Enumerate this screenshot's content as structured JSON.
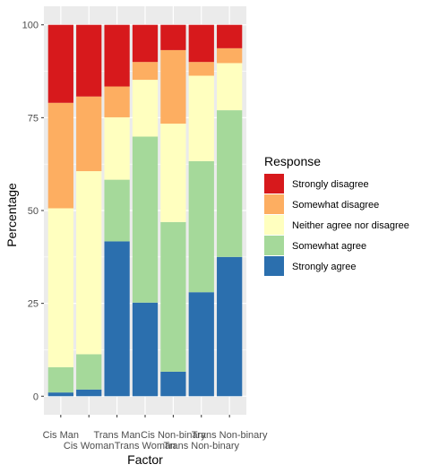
{
  "chart_data": {
    "type": "bar",
    "stacked": true,
    "xlabel": "Factor",
    "ylabel": "Percentage",
    "ylim": [
      0,
      100
    ],
    "yticks": [
      0,
      25,
      50,
      75,
      100
    ],
    "grid": true,
    "legend_position": "right",
    "legend_title": "Response",
    "categories": [
      "Cis Man",
      "Cis Woman",
      "Trans Man",
      "Trans Woman",
      "Cis Non-binary",
      "Trans Non-binary",
      "Trans Non-binary"
    ],
    "category_labels_row": [
      1,
      2,
      1,
      2,
      1,
      2,
      1
    ],
    "series": [
      {
        "name": "Strongly agree",
        "color": "#2B6FAE",
        "values": [
          1,
          1.8,
          41.7,
          25.2,
          6.6,
          28,
          37.5
        ]
      },
      {
        "name": "Somewhat agree",
        "color": "#A5D99A",
        "values": [
          6.8,
          9.5,
          16.6,
          44.7,
          40.3,
          35.3,
          39.5
        ]
      },
      {
        "name": "Neither agree nor disagree",
        "color": "#FFFFBF",
        "values": [
          42.8,
          49.3,
          16.8,
          15.3,
          26.5,
          23,
          12.7
        ]
      },
      {
        "name": "Somewhat disagree",
        "color": "#FDAE61",
        "values": [
          28.4,
          20.1,
          8.3,
          4.8,
          19.8,
          3.7,
          4
        ]
      },
      {
        "name": "Strongly disagree",
        "color": "#D7191C",
        "values": [
          21,
          19.3,
          16.6,
          10,
          6.8,
          10,
          6.3
        ]
      }
    ],
    "legend_order": [
      "Strongly disagree",
      "Somewhat disagree",
      "Neither agree nor disagree",
      "Somewhat agree",
      "Strongly agree"
    ]
  },
  "colors": {
    "panel_background": "#EBEBEB",
    "grid_line": "#FFFFFF",
    "tick_text": "#4D4D4D"
  }
}
